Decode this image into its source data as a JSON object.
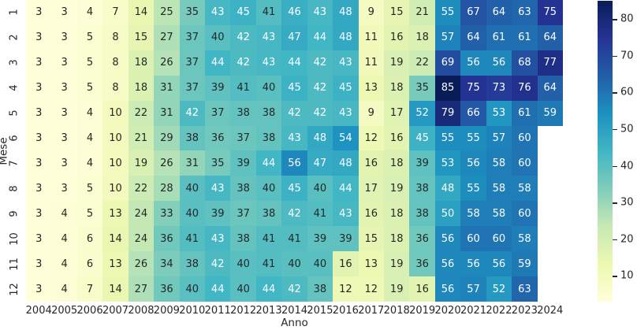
{
  "chart_data": {
    "type": "heatmap",
    "title": "",
    "xlabel": "Anno",
    "ylabel": "Mese",
    "x_categories": [
      "2004",
      "2005",
      "2006",
      "2007",
      "2008",
      "2009",
      "2010",
      "2011",
      "2012",
      "2013",
      "2014",
      "2015",
      "2016",
      "2017",
      "2018",
      "2019",
      "2020",
      "2021",
      "2022",
      "2023",
      "2024"
    ],
    "y_categories": [
      "1",
      "2",
      "3",
      "4",
      "5",
      "6",
      "7",
      "8",
      "9",
      "10",
      "11",
      "12"
    ],
    "values": [
      [
        3,
        3,
        4,
        7,
        14,
        25,
        35,
        43,
        45,
        41,
        46,
        43,
        48,
        9,
        15,
        21,
        55,
        67,
        64,
        63,
        75
      ],
      [
        3,
        3,
        5,
        8,
        15,
        27,
        37,
        40,
        42,
        43,
        47,
        44,
        48,
        11,
        16,
        18,
        57,
        64,
        61,
        61,
        64
      ],
      [
        3,
        3,
        5,
        8,
        18,
        26,
        37,
        44,
        42,
        43,
        44,
        42,
        43,
        11,
        19,
        22,
        69,
        56,
        56,
        68,
        77
      ],
      [
        3,
        3,
        5,
        8,
        18,
        31,
        37,
        39,
        41,
        40,
        45,
        42,
        45,
        13,
        18,
        35,
        85,
        75,
        73,
        76,
        64
      ],
      [
        3,
        3,
        4,
        10,
        22,
        31,
        42,
        37,
        38,
        38,
        42,
        42,
        43,
        9,
        17,
        52,
        79,
        66,
        53,
        61,
        59
      ],
      [
        3,
        3,
        4,
        10,
        21,
        29,
        38,
        36,
        37,
        38,
        43,
        48,
        54,
        12,
        16,
        45,
        55,
        55,
        57,
        60,
        null
      ],
      [
        3,
        3,
        4,
        10,
        19,
        26,
        31,
        35,
        39,
        44,
        56,
        47,
        48,
        16,
        18,
        39,
        53,
        56,
        58,
        60,
        null
      ],
      [
        3,
        3,
        5,
        10,
        22,
        28,
        40,
        43,
        38,
        40,
        45,
        40,
        44,
        17,
        19,
        38,
        48,
        55,
        58,
        58,
        null
      ],
      [
        3,
        4,
        5,
        13,
        24,
        33,
        40,
        39,
        37,
        38,
        42,
        41,
        43,
        16,
        18,
        38,
        50,
        58,
        58,
        60,
        null
      ],
      [
        3,
        4,
        6,
        14,
        24,
        36,
        41,
        43,
        38,
        41,
        41,
        39,
        39,
        15,
        18,
        36,
        56,
        60,
        60,
        58,
        null
      ],
      [
        3,
        4,
        6,
        13,
        26,
        34,
        38,
        42,
        40,
        41,
        40,
        40,
        16,
        13,
        19,
        36,
        56,
        56,
        56,
        59,
        null
      ],
      [
        3,
        4,
        7,
        14,
        27,
        36,
        40,
        44,
        40,
        44,
        42,
        38,
        12,
        12,
        19,
        16,
        56,
        57,
        52,
        63,
        null
      ]
    ],
    "vmin": 3,
    "vmax": 85,
    "colormap_name": "YlGnBu",
    "colormap_stops": [
      "#ffffd9",
      "#edf8b1",
      "#c7e9b4",
      "#7fcdbb",
      "#41b6c4",
      "#1d91c0",
      "#225ea8",
      "#253494",
      "#081d58"
    ],
    "colorbar_ticks": [
      80,
      70,
      60,
      50,
      40,
      30,
      20,
      10
    ],
    "grid_on": false,
    "legend_position": "right-colorbar",
    "annotation_colors": {
      "dark": "#262626",
      "light": "#ffffff"
    },
    "background": "#ffffff",
    "missing_cell_color": "#ffffff"
  }
}
